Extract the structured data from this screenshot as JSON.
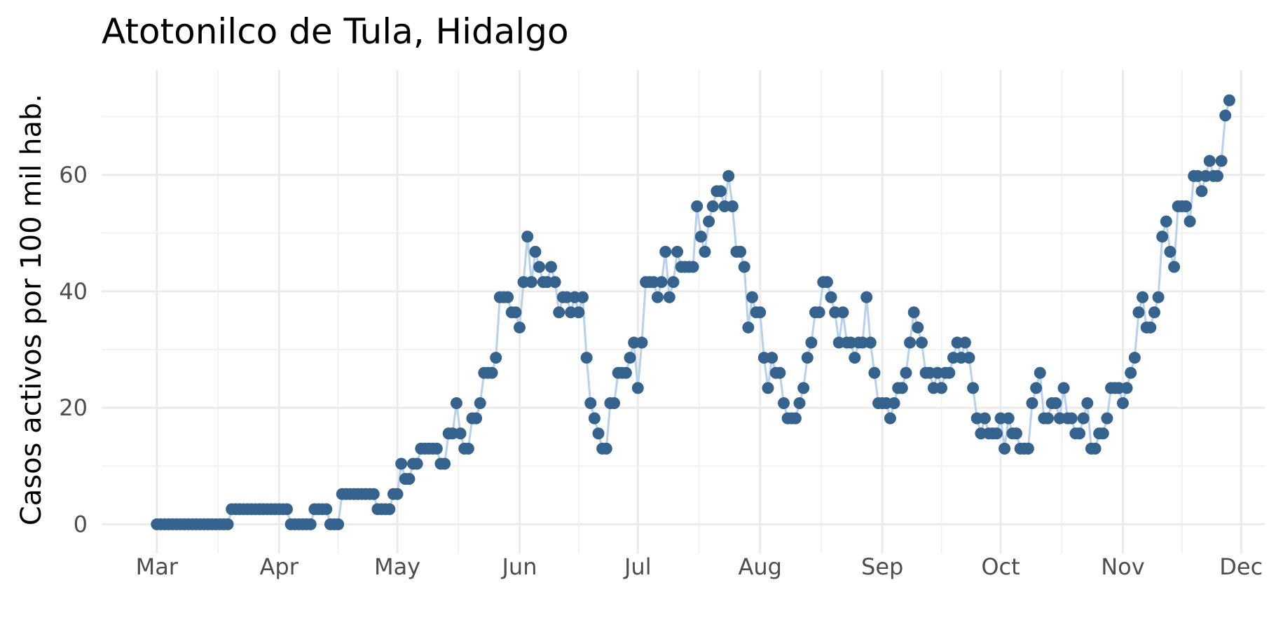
{
  "chart_data": {
    "type": "line",
    "title": "Atotonilco de Tula, Hidalgo",
    "xlabel": "",
    "ylabel": "Casos activos por 100 mil hab.",
    "x_axis_type": "date",
    "x_tick_labels": [
      "Mar",
      "Apr",
      "May",
      "Jun",
      "Jul",
      "Aug",
      "Sep",
      "Oct",
      "Nov",
      "Dec"
    ],
    "x_ticks": [
      "2020-03-01",
      "2020-04-01",
      "2020-05-01",
      "2020-06-01",
      "2020-07-01",
      "2020-08-01",
      "2020-09-01",
      "2020-10-01",
      "2020-11-01",
      "2020-12-01"
    ],
    "xlim": [
      "2020-02-16",
      "2020-12-07"
    ],
    "ylim": [
      -5,
      78
    ],
    "y_ticks": [
      0,
      20,
      40,
      60
    ],
    "grid": true,
    "line_color": "#b7d1ec",
    "point_color": "#36638e",
    "series": [
      {
        "x": [
          "2020-03-01",
          "2020-03-02",
          "2020-03-03",
          "2020-03-04",
          "2020-03-05",
          "2020-03-06",
          "2020-03-07",
          "2020-03-08",
          "2020-03-09",
          "2020-03-10",
          "2020-03-11",
          "2020-03-12",
          "2020-03-13",
          "2020-03-14",
          "2020-03-15",
          "2020-03-16",
          "2020-03-17",
          "2020-03-18",
          "2020-03-19",
          "2020-03-20",
          "2020-03-21",
          "2020-03-22",
          "2020-03-23",
          "2020-03-24",
          "2020-03-25",
          "2020-03-26",
          "2020-03-27",
          "2020-03-28",
          "2020-03-29",
          "2020-03-30",
          "2020-03-31",
          "2020-04-01",
          "2020-04-02",
          "2020-04-03",
          "2020-04-04",
          "2020-04-05",
          "2020-04-06",
          "2020-04-07",
          "2020-04-08",
          "2020-04-09",
          "2020-04-10",
          "2020-04-11",
          "2020-04-12",
          "2020-04-13",
          "2020-04-14",
          "2020-04-15",
          "2020-04-16",
          "2020-04-17",
          "2020-04-18",
          "2020-04-19",
          "2020-04-20",
          "2020-04-21",
          "2020-04-22",
          "2020-04-23",
          "2020-04-24",
          "2020-04-25",
          "2020-04-26",
          "2020-04-27",
          "2020-04-28",
          "2020-04-29",
          "2020-04-30",
          "2020-05-01",
          "2020-05-02",
          "2020-05-03",
          "2020-05-04",
          "2020-05-05",
          "2020-05-06",
          "2020-05-07",
          "2020-05-08",
          "2020-05-09",
          "2020-05-10",
          "2020-05-11",
          "2020-05-12",
          "2020-05-13",
          "2020-05-14",
          "2020-05-15",
          "2020-05-16",
          "2020-05-17",
          "2020-05-18",
          "2020-05-19",
          "2020-05-20",
          "2020-05-21",
          "2020-05-22",
          "2020-05-23",
          "2020-05-24",
          "2020-05-25",
          "2020-05-26",
          "2020-05-27",
          "2020-05-28",
          "2020-05-29",
          "2020-05-30",
          "2020-05-31",
          "2020-06-01",
          "2020-06-02",
          "2020-06-03",
          "2020-06-04",
          "2020-06-05",
          "2020-06-06",
          "2020-06-07",
          "2020-06-08",
          "2020-06-09",
          "2020-06-10",
          "2020-06-11",
          "2020-06-12",
          "2020-06-13",
          "2020-06-14",
          "2020-06-15",
          "2020-06-16",
          "2020-06-17",
          "2020-06-18",
          "2020-06-19",
          "2020-06-20",
          "2020-06-21",
          "2020-06-22",
          "2020-06-23",
          "2020-06-24",
          "2020-06-25",
          "2020-06-26",
          "2020-06-27",
          "2020-06-28",
          "2020-06-29",
          "2020-06-30",
          "2020-07-01",
          "2020-07-02",
          "2020-07-03",
          "2020-07-04",
          "2020-07-05",
          "2020-07-06",
          "2020-07-07",
          "2020-07-08",
          "2020-07-09",
          "2020-07-10",
          "2020-07-11",
          "2020-07-12",
          "2020-07-13",
          "2020-07-14",
          "2020-07-15",
          "2020-07-16",
          "2020-07-17",
          "2020-07-18",
          "2020-07-19",
          "2020-07-20",
          "2020-07-21",
          "2020-07-22",
          "2020-07-23",
          "2020-07-24",
          "2020-07-25",
          "2020-07-26",
          "2020-07-27",
          "2020-07-28",
          "2020-07-29",
          "2020-07-30",
          "2020-07-31",
          "2020-08-01",
          "2020-08-02",
          "2020-08-03",
          "2020-08-04",
          "2020-08-05",
          "2020-08-06",
          "2020-08-07",
          "2020-08-08",
          "2020-08-09",
          "2020-08-10",
          "2020-08-11",
          "2020-08-12",
          "2020-08-13",
          "2020-08-14",
          "2020-08-15",
          "2020-08-16",
          "2020-08-17",
          "2020-08-18",
          "2020-08-19",
          "2020-08-20",
          "2020-08-21",
          "2020-08-22",
          "2020-08-23",
          "2020-08-24",
          "2020-08-25",
          "2020-08-26",
          "2020-08-27",
          "2020-08-28",
          "2020-08-29",
          "2020-08-30",
          "2020-08-31",
          "2020-09-01",
          "2020-09-02",
          "2020-09-03",
          "2020-09-04",
          "2020-09-05",
          "2020-09-06",
          "2020-09-07",
          "2020-09-08",
          "2020-09-09",
          "2020-09-10",
          "2020-09-11",
          "2020-09-12",
          "2020-09-13",
          "2020-09-14",
          "2020-09-15",
          "2020-09-16",
          "2020-09-17",
          "2020-09-18",
          "2020-09-19",
          "2020-09-20",
          "2020-09-21",
          "2020-09-22",
          "2020-09-23",
          "2020-09-24",
          "2020-09-25",
          "2020-09-26",
          "2020-09-27",
          "2020-09-28",
          "2020-09-29",
          "2020-09-30",
          "2020-10-01",
          "2020-10-02",
          "2020-10-03",
          "2020-10-04",
          "2020-10-05",
          "2020-10-06",
          "2020-10-07",
          "2020-10-08",
          "2020-10-09",
          "2020-10-10",
          "2020-10-11",
          "2020-10-12",
          "2020-10-13",
          "2020-10-14",
          "2020-10-15",
          "2020-10-16",
          "2020-10-17",
          "2020-10-18",
          "2020-10-19",
          "2020-10-20",
          "2020-10-21",
          "2020-10-22",
          "2020-10-23",
          "2020-10-24",
          "2020-10-25",
          "2020-10-26",
          "2020-10-27",
          "2020-10-28",
          "2020-10-29",
          "2020-10-30",
          "2020-10-31",
          "2020-11-01",
          "2020-11-02",
          "2020-11-03",
          "2020-11-04",
          "2020-11-05",
          "2020-11-06",
          "2020-11-07",
          "2020-11-08",
          "2020-11-09",
          "2020-11-10",
          "2020-11-11",
          "2020-11-12",
          "2020-11-13",
          "2020-11-14",
          "2020-11-15",
          "2020-11-16",
          "2020-11-17",
          "2020-11-18",
          "2020-11-19",
          "2020-11-20",
          "2020-11-21",
          "2020-11-22",
          "2020-11-23",
          "2020-11-24",
          "2020-11-25",
          "2020-11-26",
          "2020-11-27",
          "2020-11-28"
        ],
        "values": [
          0,
          0,
          0,
          0,
          0,
          0,
          0,
          0,
          0,
          0,
          0,
          0,
          0,
          0,
          0,
          0,
          0,
          0,
          0,
          2.6,
          2.6,
          2.6,
          2.6,
          2.6,
          2.6,
          2.6,
          2.6,
          2.6,
          2.6,
          2.6,
          2.6,
          2.6,
          2.6,
          2.6,
          0,
          0,
          0,
          0,
          0,
          0,
          2.6,
          2.6,
          2.6,
          2.6,
          0,
          0,
          0,
          5.2,
          5.2,
          5.2,
          5.2,
          5.2,
          5.2,
          5.2,
          5.2,
          5.2,
          2.6,
          2.6,
          2.6,
          2.6,
          5.2,
          5.2,
          10.4,
          7.8,
          7.8,
          10.4,
          10.4,
          13,
          13,
          13,
          13,
          13,
          10.4,
          10.4,
          15.6,
          15.6,
          20.8,
          15.6,
          13,
          13,
          18.2,
          18.2,
          20.8,
          26,
          26,
          26,
          28.6,
          39,
          39,
          39,
          36.4,
          36.4,
          33.8,
          41.6,
          49.4,
          41.6,
          46.8,
          44.2,
          41.6,
          41.6,
          44.2,
          41.6,
          36.4,
          39,
          39,
          36.4,
          39,
          36.4,
          39,
          28.6,
          20.8,
          18.2,
          15.6,
          13,
          13,
          20.8,
          20.8,
          26,
          26,
          26,
          28.6,
          31.2,
          23.4,
          31.2,
          41.6,
          41.6,
          41.6,
          39,
          41.6,
          46.8,
          39,
          41.6,
          46.8,
          44.2,
          44.2,
          44.2,
          44.2,
          54.6,
          49.4,
          46.8,
          52,
          54.6,
          57.2,
          57.2,
          54.6,
          59.8,
          54.6,
          46.8,
          46.8,
          44.2,
          33.8,
          39,
          36.4,
          36.4,
          28.6,
          23.4,
          28.6,
          26,
          26,
          20.8,
          18.2,
          18.2,
          18.2,
          20.8,
          23.4,
          28.6,
          31.2,
          36.4,
          36.4,
          41.6,
          41.6,
          39,
          36.4,
          31.2,
          36.4,
          31.2,
          31.2,
          28.6,
          31.2,
          31.2,
          39,
          31.2,
          26,
          20.8,
          20.8,
          20.8,
          18.2,
          20.8,
          23.4,
          23.4,
          26,
          31.2,
          36.4,
          33.8,
          31.2,
          26,
          26,
          23.4,
          26,
          23.4,
          26,
          26,
          28.6,
          31.2,
          28.6,
          31.2,
          28.6,
          23.4,
          18.2,
          15.6,
          18.2,
          15.6,
          15.6,
          15.6,
          18.2,
          13,
          18.2,
          15.6,
          15.6,
          13,
          13,
          13,
          20.8,
          23.4,
          26,
          18.2,
          18.2,
          20.8,
          20.8,
          18.2,
          23.4,
          18.2,
          18.2,
          15.6,
          15.6,
          18.2,
          20.8,
          13,
          13,
          15.6,
          15.6,
          18.2,
          23.4,
          23.4,
          23.4,
          20.8,
          23.4,
          26,
          28.6,
          36.4,
          39,
          33.8,
          33.8,
          36.4,
          39,
          49.4,
          52,
          46.8,
          44.2,
          54.6,
          54.6,
          54.6,
          52,
          59.8,
          59.8,
          57.2,
          59.8,
          62.4,
          59.8,
          59.8,
          62.4,
          70.2,
          72.8
        ]
      }
    ]
  }
}
